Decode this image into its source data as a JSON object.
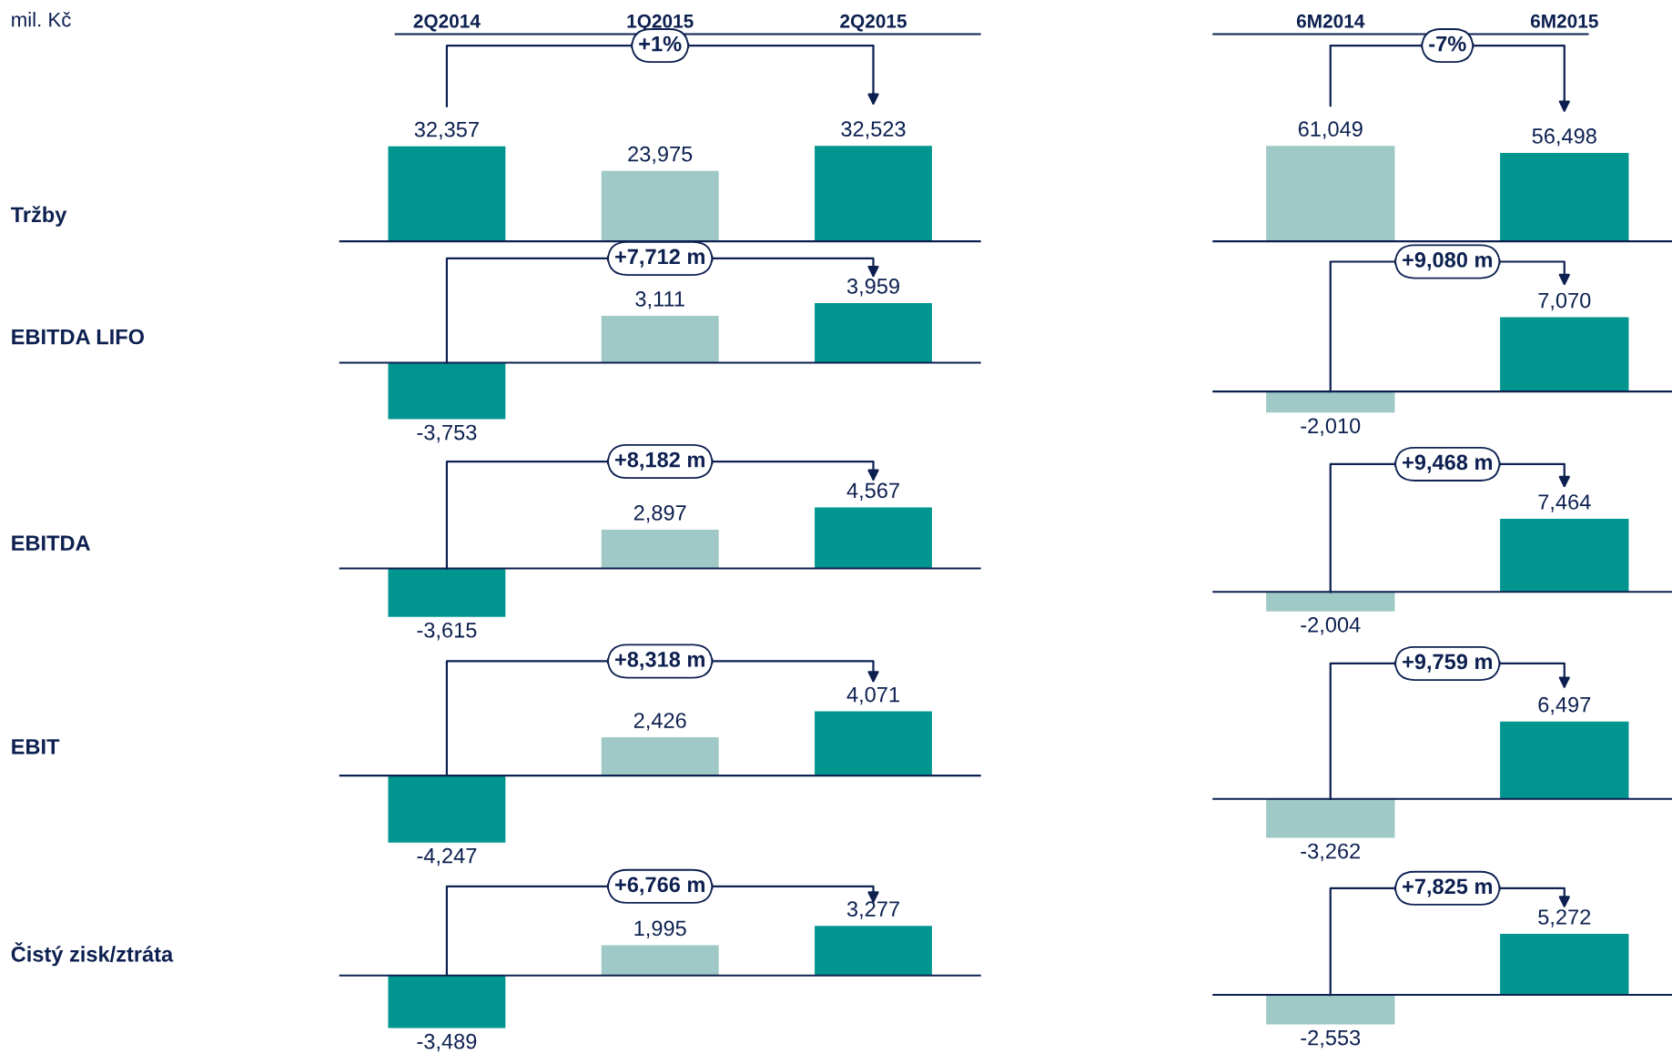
{
  "chart_data": [
    {
      "type": "bar",
      "ylabel": "Tržby",
      "categories": [
        "2Q2014",
        "1Q2015",
        "2Q2015"
      ],
      "values": [
        32357,
        23975,
        32523
      ],
      "colors": [
        "#00968f",
        "#9fc9c6",
        "#00968f"
      ],
      "value_labels": [
        "32,357",
        "23,975",
        "32,523"
      ],
      "annotations": [
        "+1%",
        "mil. Kč"
      ]
    },
    {
      "type": "bar",
      "categories": [
        "6M2014",
        "6M2015"
      ],
      "values": [
        61049,
        56498
      ],
      "colors": [
        "#9fc9c6",
        "#00968f"
      ],
      "value_labels": [
        "61,049",
        "56,498"
      ],
      "annotations": [
        "-7%"
      ]
    },
    {
      "type": "bar",
      "ylabel": "EBITDA LIFO",
      "categories": [
        null,
        null,
        null
      ],
      "values": [
        -3753,
        3111,
        3959
      ],
      "colors": [
        "#00968f",
        "#9fc9c6",
        "#00968f"
      ],
      "value_labels": [
        "-3,753",
        "3,111",
        "3,959"
      ],
      "annotations": [
        "+7,712 m"
      ]
    },
    {
      "type": "bar",
      "categories": [
        null,
        null
      ],
      "values": [
        -2010,
        7070
      ],
      "colors": [
        "#9fc9c6",
        "#00968f"
      ],
      "value_labels": [
        "-2,010",
        "7,070"
      ],
      "annotations": [
        "+9,080 m"
      ]
    },
    {
      "type": "bar",
      "ylabel": "EBITDA",
      "categories": [
        null,
        null,
        null
      ],
      "values": [
        -3615,
        2897,
        4567
      ],
      "colors": [
        "#00968f",
        "#9fc9c6",
        "#00968f"
      ],
      "value_labels": [
        "-3,615",
        "2,897",
        "4,567"
      ],
      "annotations": [
        "+8,182 m"
      ]
    },
    {
      "type": "bar",
      "categories": [
        null,
        null
      ],
      "values": [
        -2004,
        7464
      ],
      "colors": [
        "#9fc9c6",
        "#00968f"
      ],
      "value_labels": [
        "-2,004",
        "7,464"
      ],
      "annotations": [
        "+9,468 m"
      ]
    },
    {
      "type": "bar",
      "ylabel": "EBIT",
      "categories": [
        null,
        null,
        null
      ],
      "values": [
        -4247,
        2426,
        4071
      ],
      "colors": [
        "#00968f",
        "#9fc9c6",
        "#00968f"
      ],
      "value_labels": [
        "-4,247",
        "2,426",
        "4,071"
      ],
      "annotations": [
        "+8,318 m"
      ]
    },
    {
      "type": "bar",
      "categories": [
        null,
        null
      ],
      "values": [
        -3262,
        6497
      ],
      "colors": [
        "#9fc9c6",
        "#00968f"
      ],
      "value_labels": [
        "-3,262",
        "6,497"
      ],
      "annotations": [
        "+9,759 m"
      ]
    },
    {
      "type": "bar",
      "ylabel": "Čistý zisk/ztráta",
      "categories": [
        null,
        null,
        null
      ],
      "values": [
        -3489,
        1995,
        3277
      ],
      "colors": [
        "#00968f",
        "#9fc9c6",
        "#00968f"
      ],
      "value_labels": [
        "-3,489",
        "1,995",
        "3,277"
      ],
      "annotations": [
        "+6,766 m"
      ]
    },
    {
      "type": "bar",
      "categories": [
        null,
        null
      ],
      "values": [
        -2553,
        5272
      ],
      "colors": [
        "#9fc9c6",
        "#00968f"
      ],
      "value_labels": [
        "-2,553",
        "5,272"
      ],
      "annotations": [
        "+7,825 m"
      ]
    }
  ]
}
